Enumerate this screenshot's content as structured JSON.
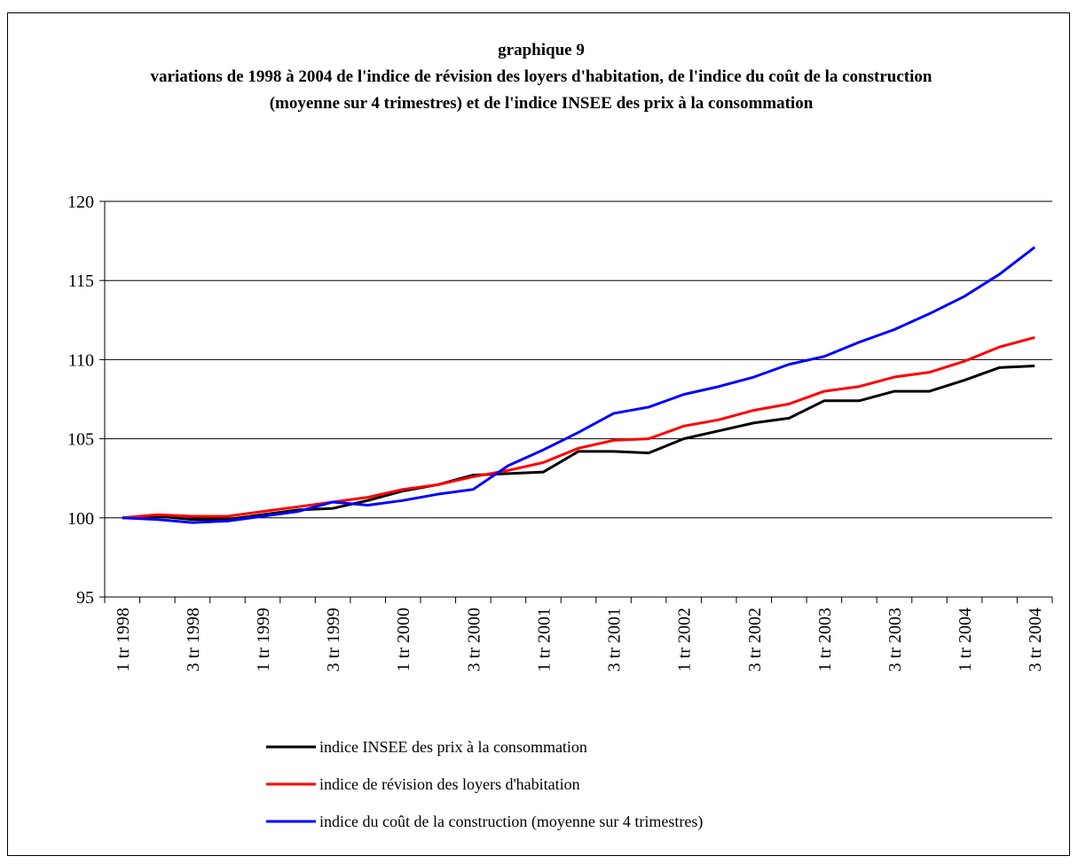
{
  "chart_data": {
    "type": "line",
    "title": "graphique 9",
    "subtitle": "variations de 1998 à 2004 de l'indice de révision des loyers d'habitation, de l'indice du coût de la construction (moyenne sur 4 trimestres) et de l'indice INSEE des prix à la consommation",
    "categories": [
      "1 tr 1998",
      null,
      "3 tr 1998",
      null,
      "1 tr 1999",
      null,
      "3 tr 1999",
      null,
      "1 tr 2000",
      null,
      "3 tr 2000",
      null,
      "1 tr 2001",
      null,
      "3 tr 2001",
      null,
      "1 tr 2002",
      null,
      "3 tr 2002",
      null,
      "1 tr 2003",
      null,
      "3 tr 2003",
      null,
      "1 tr 2004",
      null,
      "3 tr 2004"
    ],
    "series": [
      {
        "name": "indice INSEE des prix à la consommation",
        "color": "#000000",
        "values": [
          100,
          100.1,
          99.9,
          99.9,
          100.2,
          100.5,
          100.6,
          101.1,
          101.7,
          102.1,
          102.7,
          102.8,
          102.9,
          104.2,
          104.2,
          104.1,
          105.0,
          105.5,
          106.0,
          106.3,
          107.4,
          107.4,
          108.0,
          108.0,
          108.7,
          109.5,
          109.6
        ]
      },
      {
        "name": "indice de révision des loyers d'habitation",
        "color": "#ff0000",
        "values": [
          100,
          100.2,
          100.1,
          100.1,
          100.4,
          100.7,
          101.0,
          101.3,
          101.8,
          102.1,
          102.6,
          103.0,
          103.5,
          104.4,
          104.9,
          105.0,
          105.8,
          106.2,
          106.8,
          107.2,
          108.0,
          108.3,
          108.9,
          109.2,
          109.9,
          110.8,
          111.4
        ]
      },
      {
        "name": "indice du coût de la construction (moyenne sur 4 trimestres)",
        "color": "#0000ff",
        "values": [
          100,
          99.9,
          99.7,
          99.8,
          100.1,
          100.4,
          101.0,
          100.8,
          101.1,
          101.5,
          101.8,
          103.3,
          104.3,
          105.4,
          106.6,
          107.0,
          107.8,
          108.3,
          108.9,
          109.7,
          110.2,
          111.1,
          111.9,
          112.9,
          114.0,
          115.4,
          117.1
        ]
      }
    ],
    "ylim": [
      95,
      120
    ],
    "yticks": [
      95,
      100,
      105,
      110,
      115,
      120
    ],
    "grid": true,
    "legend": "bottom"
  }
}
